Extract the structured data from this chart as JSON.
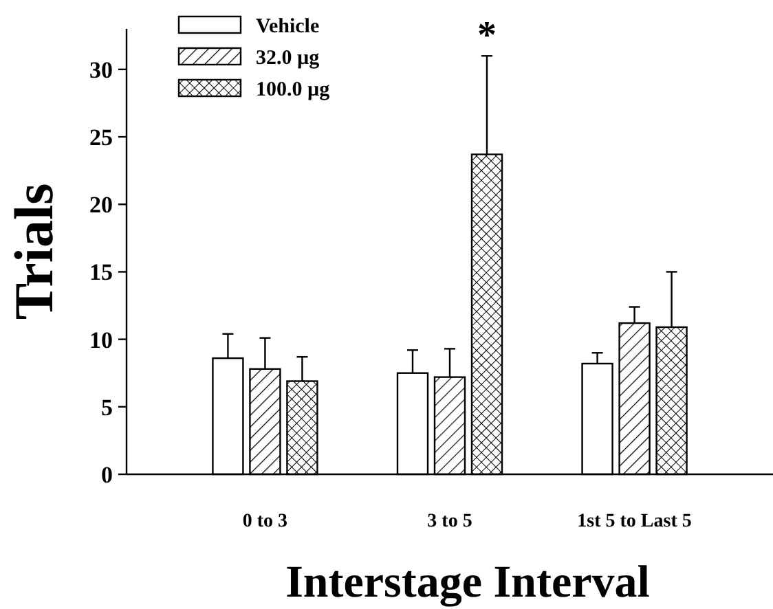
{
  "chart_data": {
    "type": "bar",
    "xlabel": "Interstage Interval",
    "ylabel": "Trials",
    "categories": [
      "0 to 3",
      "3 to 5",
      "1st 5 to Last 5"
    ],
    "series": [
      {
        "name": "Vehicle",
        "color": "#ffffff",
        "values": [
          8.6,
          7.5,
          8.2
        ],
        "errors": [
          [
            8.6,
            10.4
          ],
          [
            7.5,
            9.2
          ],
          [
            8.2,
            9.0
          ]
        ]
      },
      {
        "name": "32.0 µg",
        "color": "#000000",
        "values": [
          7.8,
          7.2,
          11.2
        ],
        "errors": [
          [
            7.8,
            10.1
          ],
          [
            7.2,
            9.3
          ],
          [
            11.2,
            12.4
          ]
        ]
      },
      {
        "name": "100.0 µg",
        "color": "#000000",
        "values": [
          6.9,
          23.7,
          10.9
        ],
        "errors": [
          [
            6.9,
            8.7
          ],
          [
            23.7,
            31.0
          ],
          [
            10.9,
            15.0
          ]
        ]
      }
    ],
    "ylim": [
      0,
      33
    ],
    "yticks": [
      0,
      5,
      10,
      15,
      20,
      25,
      30
    ],
    "grid": false,
    "legend": "top left",
    "annotations": [
      "*"
    ]
  }
}
